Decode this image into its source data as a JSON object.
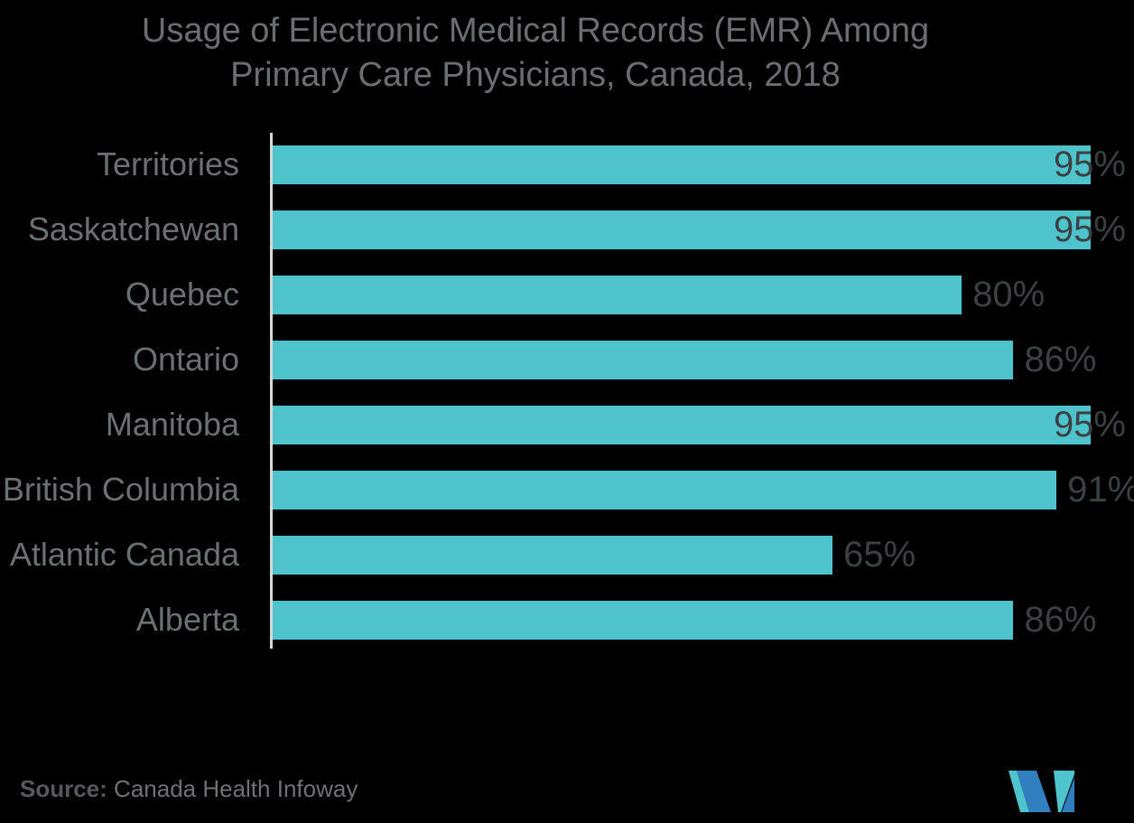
{
  "header": {
    "title_line1": "Usage of Electronic Medical Records (EMR) Among",
    "title_line2": "Primary Care Physicians, Canada, 2018"
  },
  "chart_data": {
    "type": "bar",
    "orientation": "horizontal",
    "title": "Usage of Electronic Medical Records (EMR) Among Primary Care Physicians, Canada, 2018",
    "categories": [
      "Territories",
      "Saskatchewan",
      "Quebec",
      "Ontario",
      "Manitoba",
      "British Columbia",
      "Atlantic Canada",
      "Alberta"
    ],
    "values": [
      95,
      95,
      80,
      86,
      95,
      91,
      65,
      86
    ],
    "value_labels": [
      "95%",
      "95%",
      "80%",
      "86%",
      "95%",
      "91%",
      "65%",
      "86%"
    ],
    "xlabel": "",
    "ylabel": "",
    "xlim": [
      0,
      100
    ],
    "grid": false,
    "legend": false,
    "bar_color": "#4EC3CB",
    "category_label_color": "#6B7073",
    "value_label_color": "#3B4043",
    "axis_line_color": "#D6D7D8",
    "background_color": "#000000",
    "value_label_placement": "outside-end, inside-end when bar reaches chart edge"
  },
  "footer": {
    "source_label": "Source:",
    "source_value": " Canada Health Infoway"
  },
  "logo": {
    "name": "mordor-intelligence-m-logo",
    "teal": "#4EC5CE",
    "blue": "#317FBE"
  }
}
